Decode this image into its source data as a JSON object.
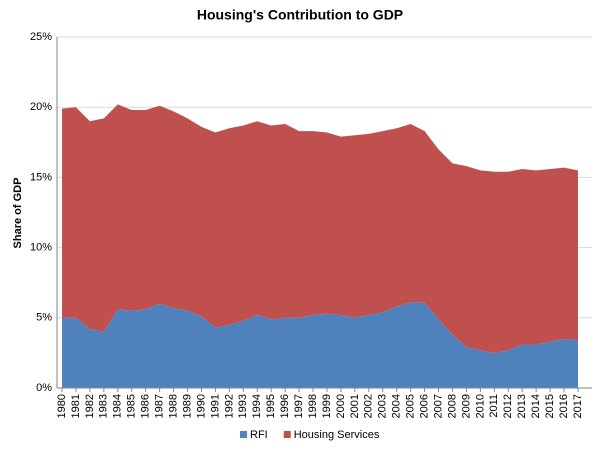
{
  "chart_data": {
    "type": "stacked-area",
    "title": "Housing's Contribution to GDP",
    "y_label": "Share of GDP",
    "categories": [
      "1980",
      "1981",
      "1982",
      "1983",
      "1984",
      "1985",
      "1986",
      "1987",
      "1988",
      "1989",
      "1990",
      "1991",
      "1992",
      "1993",
      "1994",
      "1995",
      "1996",
      "1997",
      "1998",
      "1999",
      "2000",
      "2001",
      "2002",
      "2003",
      "2004",
      "2005",
      "2006",
      "2007",
      "2008",
      "2009",
      "2010",
      "2011",
      "2012",
      "2013",
      "2014",
      "2015",
      "2016",
      "2017"
    ],
    "series": [
      {
        "name": "RFI",
        "color": "#4f81bd",
        "values": [
          5.0,
          5.0,
          4.2,
          4.0,
          5.6,
          5.5,
          5.6,
          6.0,
          5.7,
          5.5,
          5.1,
          4.3,
          4.5,
          4.8,
          5.2,
          4.9,
          5.0,
          5.0,
          5.2,
          5.3,
          5.2,
          5.0,
          5.2,
          5.4,
          5.8,
          6.1,
          6.1,
          4.9,
          3.8,
          2.9,
          2.7,
          2.5,
          2.7,
          3.1,
          3.1,
          3.3,
          3.5,
          3.4
        ]
      },
      {
        "name": "Housing Services",
        "color": "#c0504d",
        "values": [
          14.9,
          15.0,
          14.8,
          15.2,
          14.6,
          14.3,
          14.2,
          14.1,
          14.0,
          13.7,
          13.5,
          13.9,
          14.0,
          13.9,
          13.8,
          13.8,
          13.8,
          13.3,
          13.1,
          12.9,
          12.7,
          13.0,
          12.9,
          12.9,
          12.7,
          12.7,
          12.2,
          12.1,
          12.2,
          12.9,
          12.8,
          12.9,
          12.7,
          12.5,
          12.4,
          12.3,
          12.2,
          12.1
        ]
      }
    ],
    "ylim": [
      0,
      25
    ],
    "yticks": [
      {
        "value": 0,
        "label": "0%"
      },
      {
        "value": 5,
        "label": "5%"
      },
      {
        "value": 10,
        "label": "10%"
      },
      {
        "value": 15,
        "label": "15%"
      },
      {
        "value": 20,
        "label": "20%"
      },
      {
        "value": 25,
        "label": "25%"
      }
    ],
    "grid": true,
    "legend": "bottom"
  }
}
